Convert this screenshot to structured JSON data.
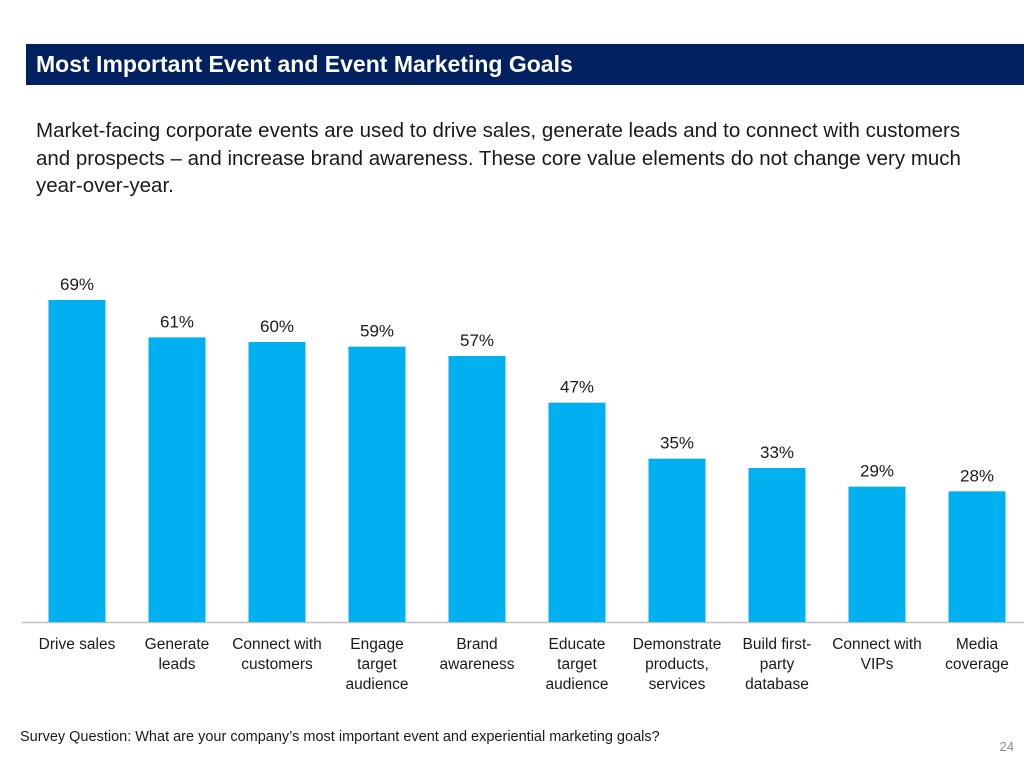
{
  "slide": {
    "title": "Most Important Event and Event Marketing Goals",
    "intro": "Market-facing corporate events are used to drive sales, generate leads and to connect with customers and prospects – and increase brand awareness. These core value elements do not change very much year-over-year.",
    "footnote": "Survey Question: What are your company’s most important event and experiential marketing goals?",
    "page_number": "24"
  },
  "colors": {
    "title_bar": "#002060",
    "bar": "#00B0F0",
    "axis": "#BFBFBF"
  },
  "chart_data": {
    "type": "bar",
    "title": "",
    "xlabel": "",
    "ylabel": "",
    "ylim": [
      0,
      69
    ],
    "grid": false,
    "legend": "none",
    "categories": [
      "Drive sales",
      "Generate leads",
      "Connect with customers",
      "Engage target audience",
      "Brand awareness",
      "Educate target audience",
      "Demonstrate products, services",
      "Build first-party database",
      "Connect with VIPs",
      "Media coverage"
    ],
    "category_lines": [
      [
        "Drive sales"
      ],
      [
        "Generate",
        "leads"
      ],
      [
        "Connect with",
        "customers"
      ],
      [
        "Engage",
        "target",
        "audience"
      ],
      [
        "Brand",
        "awareness"
      ],
      [
        "Educate",
        "target",
        "audience"
      ],
      [
        "Demonstrate",
        "products,",
        "services"
      ],
      [
        "Build first-",
        "party",
        "database"
      ],
      [
        "Connect with",
        "VIPs"
      ],
      [
        "Media",
        "coverage"
      ]
    ],
    "values": [
      69,
      61,
      60,
      59,
      57,
      47,
      35,
      33,
      29,
      28
    ],
    "value_labels": [
      "69%",
      "61%",
      "60%",
      "59%",
      "57%",
      "47%",
      "35%",
      "33%",
      "29%",
      "28%"
    ]
  }
}
